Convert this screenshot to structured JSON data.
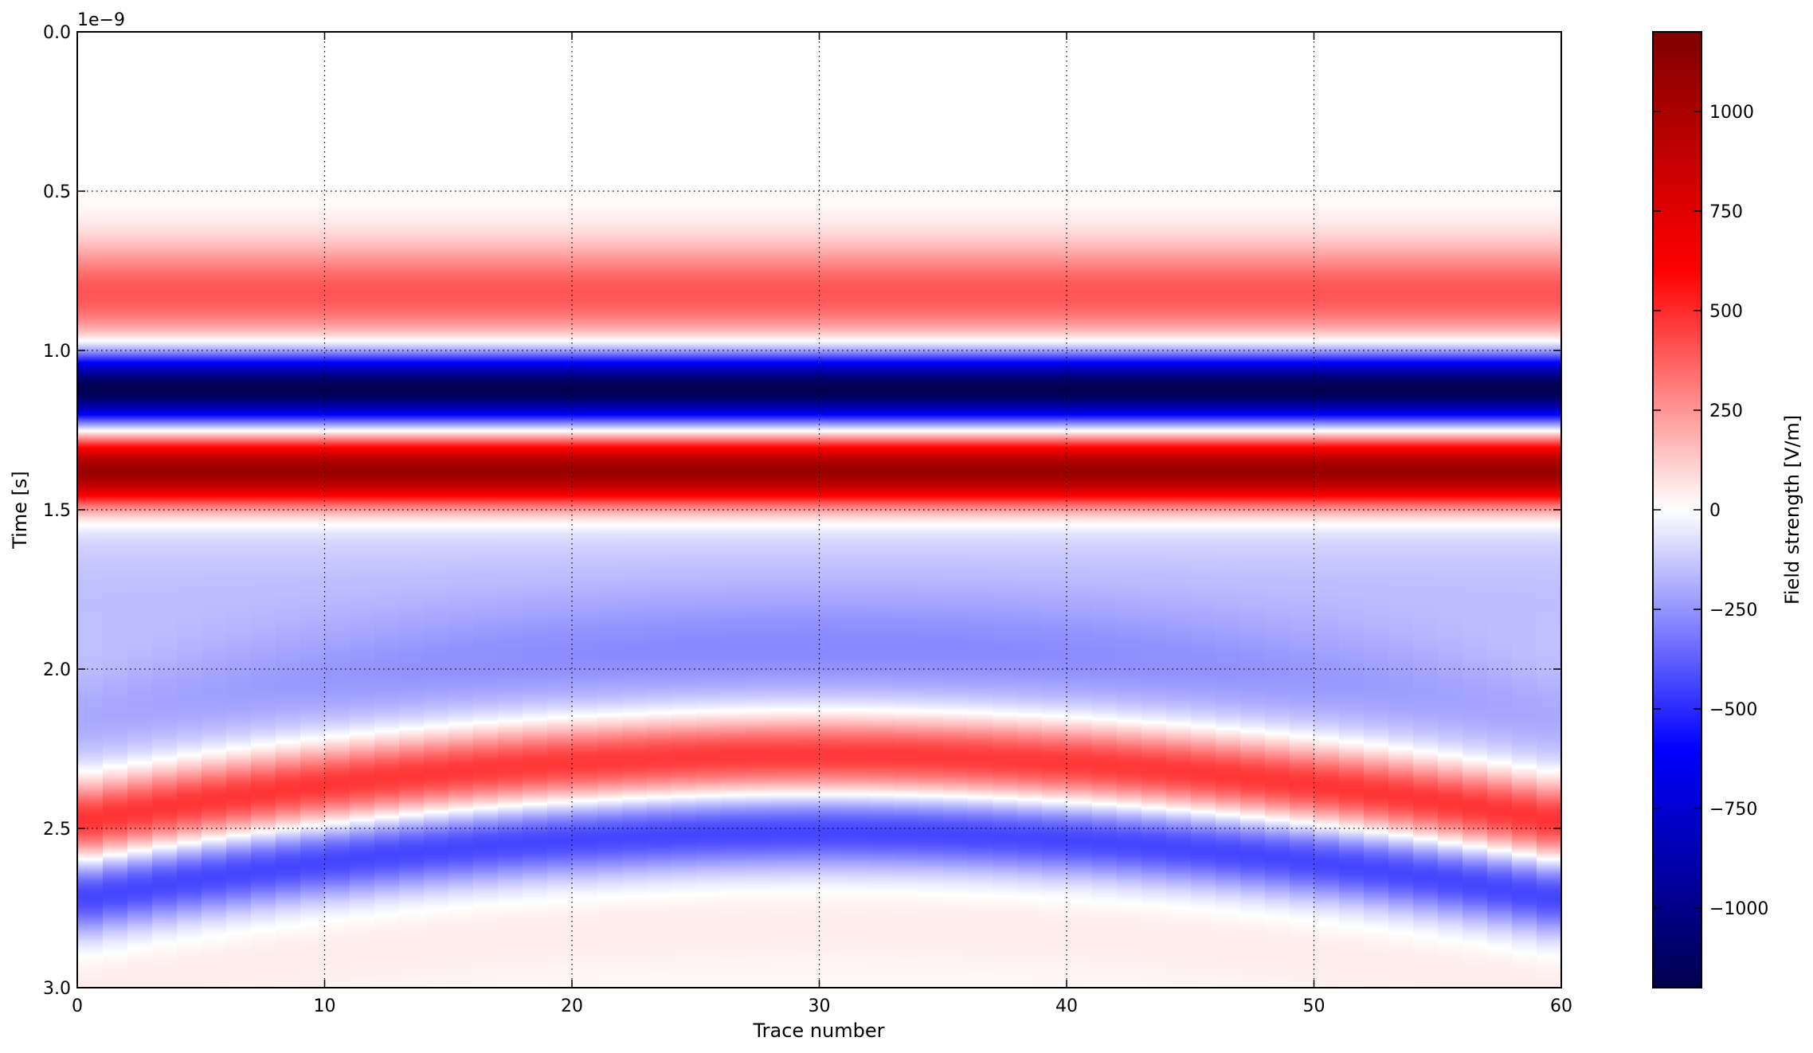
{
  "chart_data": {
    "type": "heatmap",
    "title": "",
    "xlabel": "Trace number",
    "ylabel": "Time [s]",
    "y_offset_label": "1e−9",
    "xlim": [
      0,
      60
    ],
    "ylim": [
      3.0,
      0.0
    ],
    "y_inverted": true,
    "y_scale_factor": 1e-09,
    "grid": true,
    "grid_style": "dotted",
    "x_ticks": [
      0,
      10,
      20,
      30,
      40,
      50,
      60
    ],
    "x_tick_labels": [
      "0",
      "10",
      "20",
      "30",
      "40",
      "50",
      "60"
    ],
    "y_ticks": [
      0.0,
      0.5,
      1.0,
      1.5,
      2.0,
      2.5,
      3.0
    ],
    "y_tick_labels": [
      "0.0",
      "0.5",
      "1.0",
      "1.5",
      "2.0",
      "2.5",
      "3.0"
    ],
    "colormap": "seismic",
    "colormap_colors": [
      "#00004d",
      "#0000ff",
      "#ffffff",
      "#ff0000",
      "#7f0000"
    ],
    "n_traces": 60,
    "direct_wave_bands": [
      {
        "center_time": 0.82,
        "sigma": 0.11,
        "amplitude": 400
      },
      {
        "center_time": 1.12,
        "sigma": 0.075,
        "amplitude": -1200
      },
      {
        "center_time": 1.38,
        "sigma": 0.075,
        "amplitude": 1100
      },
      {
        "center_time": 1.78,
        "sigma": 0.22,
        "amplitude": -150
      }
    ],
    "reflection_hyperbola": {
      "apex_trace": 30,
      "apex_time": 2.27,
      "edge_time": 2.48,
      "lobes": [
        {
          "time_offset": 0.0,
          "sigma": 0.085,
          "amplitude": 500
        },
        {
          "time_offset": 0.24,
          "sigma": 0.085,
          "amplitude": -450
        },
        {
          "time_offset": 0.52,
          "sigma": 0.13,
          "amplitude": 45
        },
        {
          "time_offset": -0.3,
          "sigma": 0.13,
          "amplitude": -170
        }
      ]
    },
    "colorbar": {
      "label": "Field strength [V/m]",
      "vmin": -1200,
      "vmax": 1200,
      "ticks": [
        -1000,
        -750,
        -500,
        -250,
        0,
        250,
        500,
        750,
        1000
      ],
      "tick_labels": [
        "−1000",
        "−750",
        "−500",
        "−250",
        "0",
        "250",
        "500",
        "750",
        "1000"
      ]
    }
  }
}
